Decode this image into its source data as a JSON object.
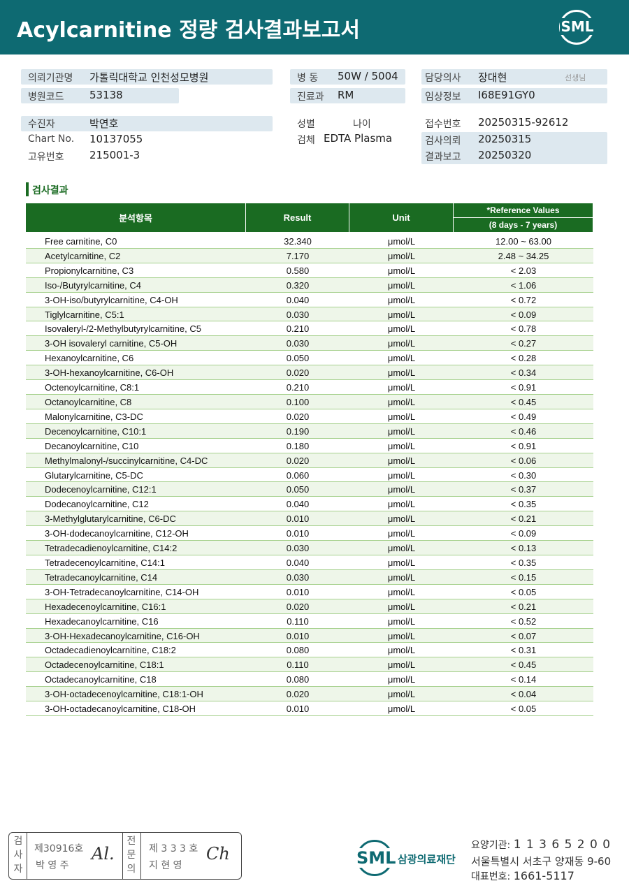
{
  "header": {
    "title": "Acylcarnitine 정량 검사결과보고서",
    "logo": "SML"
  },
  "info": [
    {
      "label": "의뢰기관명",
      "value": "가톨릭대학교 인천성모병원"
    },
    {
      "label": "병원코드",
      "value": "53138"
    },
    {
      "label": "병 동",
      "value": "50W / 5004"
    },
    {
      "label": "진료과",
      "value": "RM"
    },
    {
      "label": "담당의사",
      "value": "장대현",
      "suffix": "선생님"
    },
    {
      "label": "임상정보",
      "value": "I68E91GY0"
    },
    {
      "label": "수진자",
      "value": "박연호"
    },
    {
      "label": "Chart No.",
      "value": "10137055"
    },
    {
      "label": "고유번호",
      "value": "215001-3"
    },
    {
      "label": "성별"
    },
    {
      "label": "나이"
    },
    {
      "label": "검체",
      "value": "EDTA Plasma"
    },
    {
      "label": "접수번호",
      "value": "20250315-92612"
    },
    {
      "label": "검사의뢰",
      "value": "20250315"
    },
    {
      "label": "결과보고",
      "value": "20250320"
    }
  ],
  "section_title": "검사결과",
  "table": {
    "headers": [
      "분석항목",
      "Result",
      "Unit",
      "*Reference Values"
    ],
    "reference_note": "(8 days - 7 years)",
    "rows": [
      [
        "Free carnitine, C0",
        "32.340",
        "μmol/L",
        "12.00 ~ 63.00"
      ],
      [
        "Acetylcarnitine, C2",
        "7.170",
        "μmol/L",
        "2.48 ~ 34.25"
      ],
      [
        "Propionylcarnitine, C3",
        "0.580",
        "μmol/L",
        "< 2.03"
      ],
      [
        "Iso-/Butyrylcarnitine, C4",
        "0.320",
        "μmol/L",
        "< 1.06"
      ],
      [
        "3-OH-iso/butyrylcarnitine, C4-OH",
        "0.040",
        "μmol/L",
        "< 0.72"
      ],
      [
        "Tiglylcarnitine, C5:1",
        "0.030",
        "μmol/L",
        "< 0.09"
      ],
      [
        "Isovaleryl-/2-Methylbutyrylcarnitine, C5",
        "0.210",
        "μmol/L",
        "< 0.78"
      ],
      [
        "3-OH isovaleryl carnitine, C5-OH",
        "0.030",
        "μmol/L",
        "< 0.27"
      ],
      [
        "Hexanoylcarnitine, C6",
        "0.050",
        "μmol/L",
        "< 0.28"
      ],
      [
        "3-OH-hexanoylcarnitine, C6-OH",
        "0.020",
        "μmol/L",
        "< 0.34"
      ],
      [
        "Octenoylcarnitine, C8:1",
        "0.210",
        "μmol/L",
        "< 0.91"
      ],
      [
        "Octanoylcarnitine, C8",
        "0.100",
        "μmol/L",
        "< 0.45"
      ],
      [
        "Malonylcarnitine, C3-DC",
        "0.020",
        "μmol/L",
        "< 0.49"
      ],
      [
        "Decenoylcarnitine, C10:1",
        "0.190",
        "μmol/L",
        "< 0.46"
      ],
      [
        "Decanoylcarnitine, C10",
        "0.180",
        "μmol/L",
        "< 0.91"
      ],
      [
        "Methylmalonyl-/succinylcarnitine, C4-DC",
        "0.020",
        "μmol/L",
        "< 0.06"
      ],
      [
        "Glutarylcarnitine, C5-DC",
        "0.060",
        "μmol/L",
        "< 0.30"
      ],
      [
        "Dodecenoylcarnitine, C12:1",
        "0.050",
        "μmol/L",
        "< 0.37"
      ],
      [
        "Dodecanoylcarnitine, C12",
        "0.040",
        "μmol/L",
        "< 0.35"
      ],
      [
        "3-Methylglutarylcarnitine, C6-DC",
        "0.010",
        "μmol/L",
        "< 0.21"
      ],
      [
        "3-OH-dodecanoylcarnitine, C12-OH",
        "0.010",
        "μmol/L",
        "< 0.09"
      ],
      [
        "Tetradecadienoylcarnitine, C14:2",
        "0.030",
        "μmol/L",
        "< 0.13"
      ],
      [
        "Tetradecenoylcarnitine, C14:1",
        "0.040",
        "μmol/L",
        "< 0.35"
      ],
      [
        "Tetradecanoylcarnitine, C14",
        "0.030",
        "μmol/L",
        "< 0.15"
      ],
      [
        "3-OH-Tetradecanoylcarnitine, C14-OH",
        "0.010",
        "μmol/L",
        "< 0.05"
      ],
      [
        "Hexadecenoylcarnitine, C16:1",
        "0.020",
        "μmol/L",
        "< 0.21"
      ],
      [
        "Hexadecanoylcarnitine, C16",
        "0.110",
        "μmol/L",
        "< 0.52"
      ],
      [
        "3-OH-Hexadecanoylcarnitine, C16-OH",
        "0.010",
        "μmol/L",
        "< 0.07"
      ],
      [
        "Octadecadienoylcarnitine, C18:2",
        "0.080",
        "μmol/L",
        "< 0.31"
      ],
      [
        "Octadecenoylcarnitine, C18:1",
        "0.110",
        "μmol/L",
        "< 0.45"
      ],
      [
        "Octadecanoylcarnitine, C18",
        "0.080",
        "μmol/L",
        "< 0.14"
      ],
      [
        "3-OH-octadecenoylcarnitine, C18:1-OH",
        "0.020",
        "μmol/L",
        "< 0.04"
      ],
      [
        "3-OH-octadecanoylcarnitine, C18-OH",
        "0.010",
        "μmol/L",
        "< 0.05"
      ]
    ]
  },
  "footer": {
    "tester_title": [
      "검",
      "사",
      "자"
    ],
    "tester_no": "제30916호",
    "tester_name": "박 영 주",
    "tester_sign": "Al.",
    "doctor_title": [
      "전",
      "문",
      "의"
    ],
    "doctor_no": "제 3 3 3 호",
    "doctor_name": "지 현 영",
    "doctor_sign": "Ch",
    "logo": "SML",
    "org": "삼광의료재단",
    "code_label": "요양기관:",
    "code": "1 1 3 6 5 2 0 0",
    "address": "서울특별시 서초구 양재동 9-60",
    "phone_label": "대표번호:",
    "phone": "1661-5117"
  }
}
